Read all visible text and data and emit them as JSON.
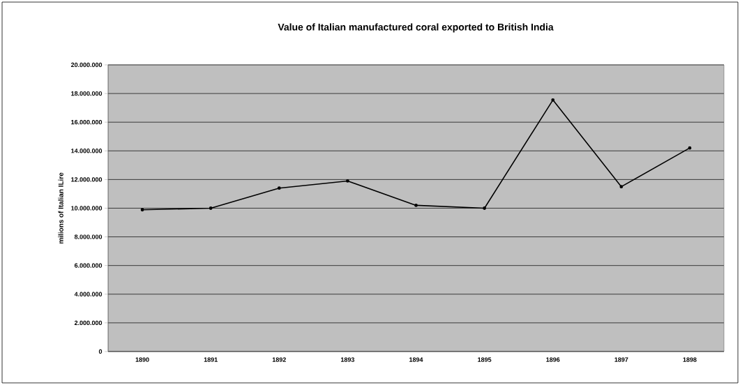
{
  "chart_data": {
    "type": "line",
    "title": "Value of Italian manufactured coral exported to British India",
    "ylabel": "milions of Italian ILire",
    "categories": [
      "1890",
      "1891",
      "1892",
      "1893",
      "1894",
      "1895",
      "1896",
      "1897",
      "1898"
    ],
    "series": [
      {
        "color": "#000000",
        "values": [
          9890000,
          10000000,
          11400000,
          11900000,
          10200000,
          10000000,
          17550000,
          11500000,
          14200000
        ]
      }
    ],
    "ylim": [
      0,
      20000000
    ],
    "yticks": [
      0,
      {
        "value": 2000000,
        "label": "2.000.000"
      },
      {
        "value": 4000000,
        "label": "4.000.000"
      },
      {
        "value": 6000000,
        "label": "6.000.000"
      },
      {
        "value": 8000000,
        "label": "8.000.000"
      },
      {
        "value": 10000000,
        "label": "10.000.000"
      },
      {
        "value": 12000000,
        "label": "12.000.000"
      },
      {
        "value": 14000000,
        "label": "14.000.000"
      },
      {
        "value": 16000000,
        "label": "16.000.000"
      },
      {
        "value": 18000000,
        "label": "18.000.000"
      },
      {
        "value": 20000000,
        "label": "20.000.000"
      }
    ],
    "grid": "y",
    "marker": "circle",
    "line_style": "solid"
  }
}
